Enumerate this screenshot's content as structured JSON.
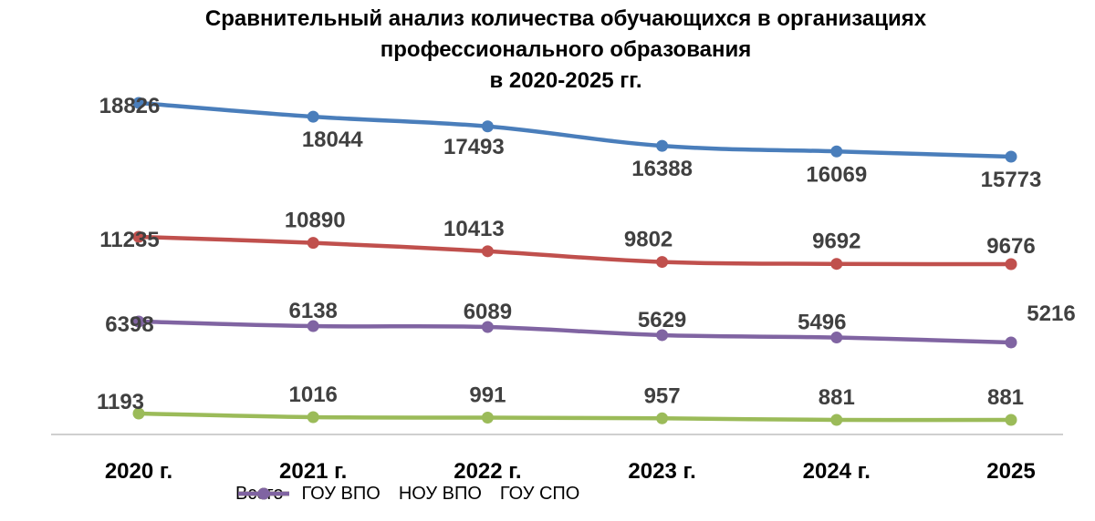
{
  "chart_data": {
    "type": "line",
    "title_lines": [
      "Сравнительный анализ количества обучающихся в организациях",
      "профессионального образования",
      "в 2020-2025 гг."
    ],
    "categories": [
      "2020 г.",
      "2021 г.",
      "2022 г.",
      "2023 г.",
      "2024 г.",
      "2025"
    ],
    "series": [
      {
        "name": "Всего",
        "color": "#4a7ebb",
        "values": [
          18826,
          18044,
          17493,
          16388,
          16069,
          15773
        ]
      },
      {
        "name": "ГОУ ВПО",
        "color": "#c0504d",
        "values": [
          11235,
          10890,
          10413,
          9802,
          9692,
          9676
        ]
      },
      {
        "name": "НОУ ВПО",
        "color": "#9bbb59",
        "values": [
          1193,
          1016,
          991,
          957,
          881,
          881
        ]
      },
      {
        "name": "ГОУ СПО",
        "color": "#8064a2",
        "values": [
          6398,
          6138,
          6089,
          5629,
          5496,
          5216
        ]
      }
    ],
    "xlabel": "",
    "ylabel": "",
    "grid": false,
    "legend_position": "bottom",
    "series_draw_order": [
      0,
      1,
      3,
      2
    ]
  }
}
